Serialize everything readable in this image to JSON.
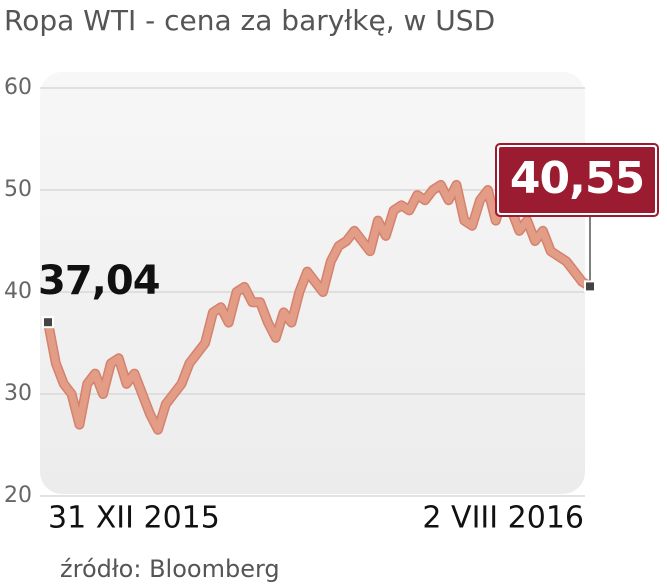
{
  "chart_data": {
    "type": "line",
    "title": "Ropa WTI - cena za baryłkę, w USD",
    "source": "źródło: Bloomberg",
    "categories": [
      "31 XII 2015",
      null,
      null,
      null,
      null,
      null,
      null,
      null,
      null,
      null,
      null,
      null,
      null,
      null,
      null,
      null,
      null,
      null,
      null,
      null,
      null,
      null,
      null,
      null,
      null,
      null,
      null,
      null,
      null,
      null,
      null,
      null,
      null,
      null,
      null,
      null,
      null,
      null,
      null,
      null,
      null,
      null,
      null,
      null,
      null,
      null,
      null,
      null,
      null,
      null,
      null,
      null,
      null,
      null,
      null,
      null,
      null,
      null,
      null,
      null,
      null,
      null,
      null,
      null,
      null,
      null,
      null,
      null,
      null,
      "2 VIII 2016"
    ],
    "values": [
      37.04,
      33,
      31,
      30,
      27,
      31,
      32,
      30,
      33,
      33.5,
      31,
      32,
      30,
      28,
      26.5,
      29,
      30,
      31,
      33,
      34,
      35,
      38,
      38.5,
      37,
      40,
      40.5,
      39,
      39,
      37,
      35.5,
      38,
      37,
      40,
      42,
      41,
      40,
      43,
      44.5,
      45,
      46,
      45,
      44,
      47,
      45.5,
      48,
      48.5,
      48,
      49.5,
      49,
      50,
      50.5,
      49,
      50.5,
      47,
      46.5,
      49,
      50,
      47,
      49.5,
      48,
      46,
      47,
      45,
      46,
      44,
      43.5,
      43,
      42,
      41,
      40.55
    ],
    "value_labels": [
      "37,04",
      null,
      null,
      null,
      null,
      null,
      null,
      null,
      null,
      null,
      null,
      null,
      null,
      null,
      null,
      null,
      null,
      null,
      null,
      null,
      null,
      null,
      null,
      null,
      null,
      null,
      null,
      null,
      null,
      null,
      null,
      null,
      null,
      null,
      null,
      null,
      null,
      null,
      null,
      null,
      null,
      null,
      null,
      null,
      null,
      null,
      null,
      null,
      null,
      null,
      null,
      null,
      null,
      null,
      null,
      null,
      null,
      null,
      null,
      null,
      null,
      null,
      null,
      null,
      null,
      null,
      null,
      null,
      null,
      "40,55"
    ],
    "color": "#e39c86",
    "ylim": [
      20,
      60
    ],
    "yticks": [
      20,
      30,
      40,
      50,
      60
    ],
    "grid": true
  }
}
